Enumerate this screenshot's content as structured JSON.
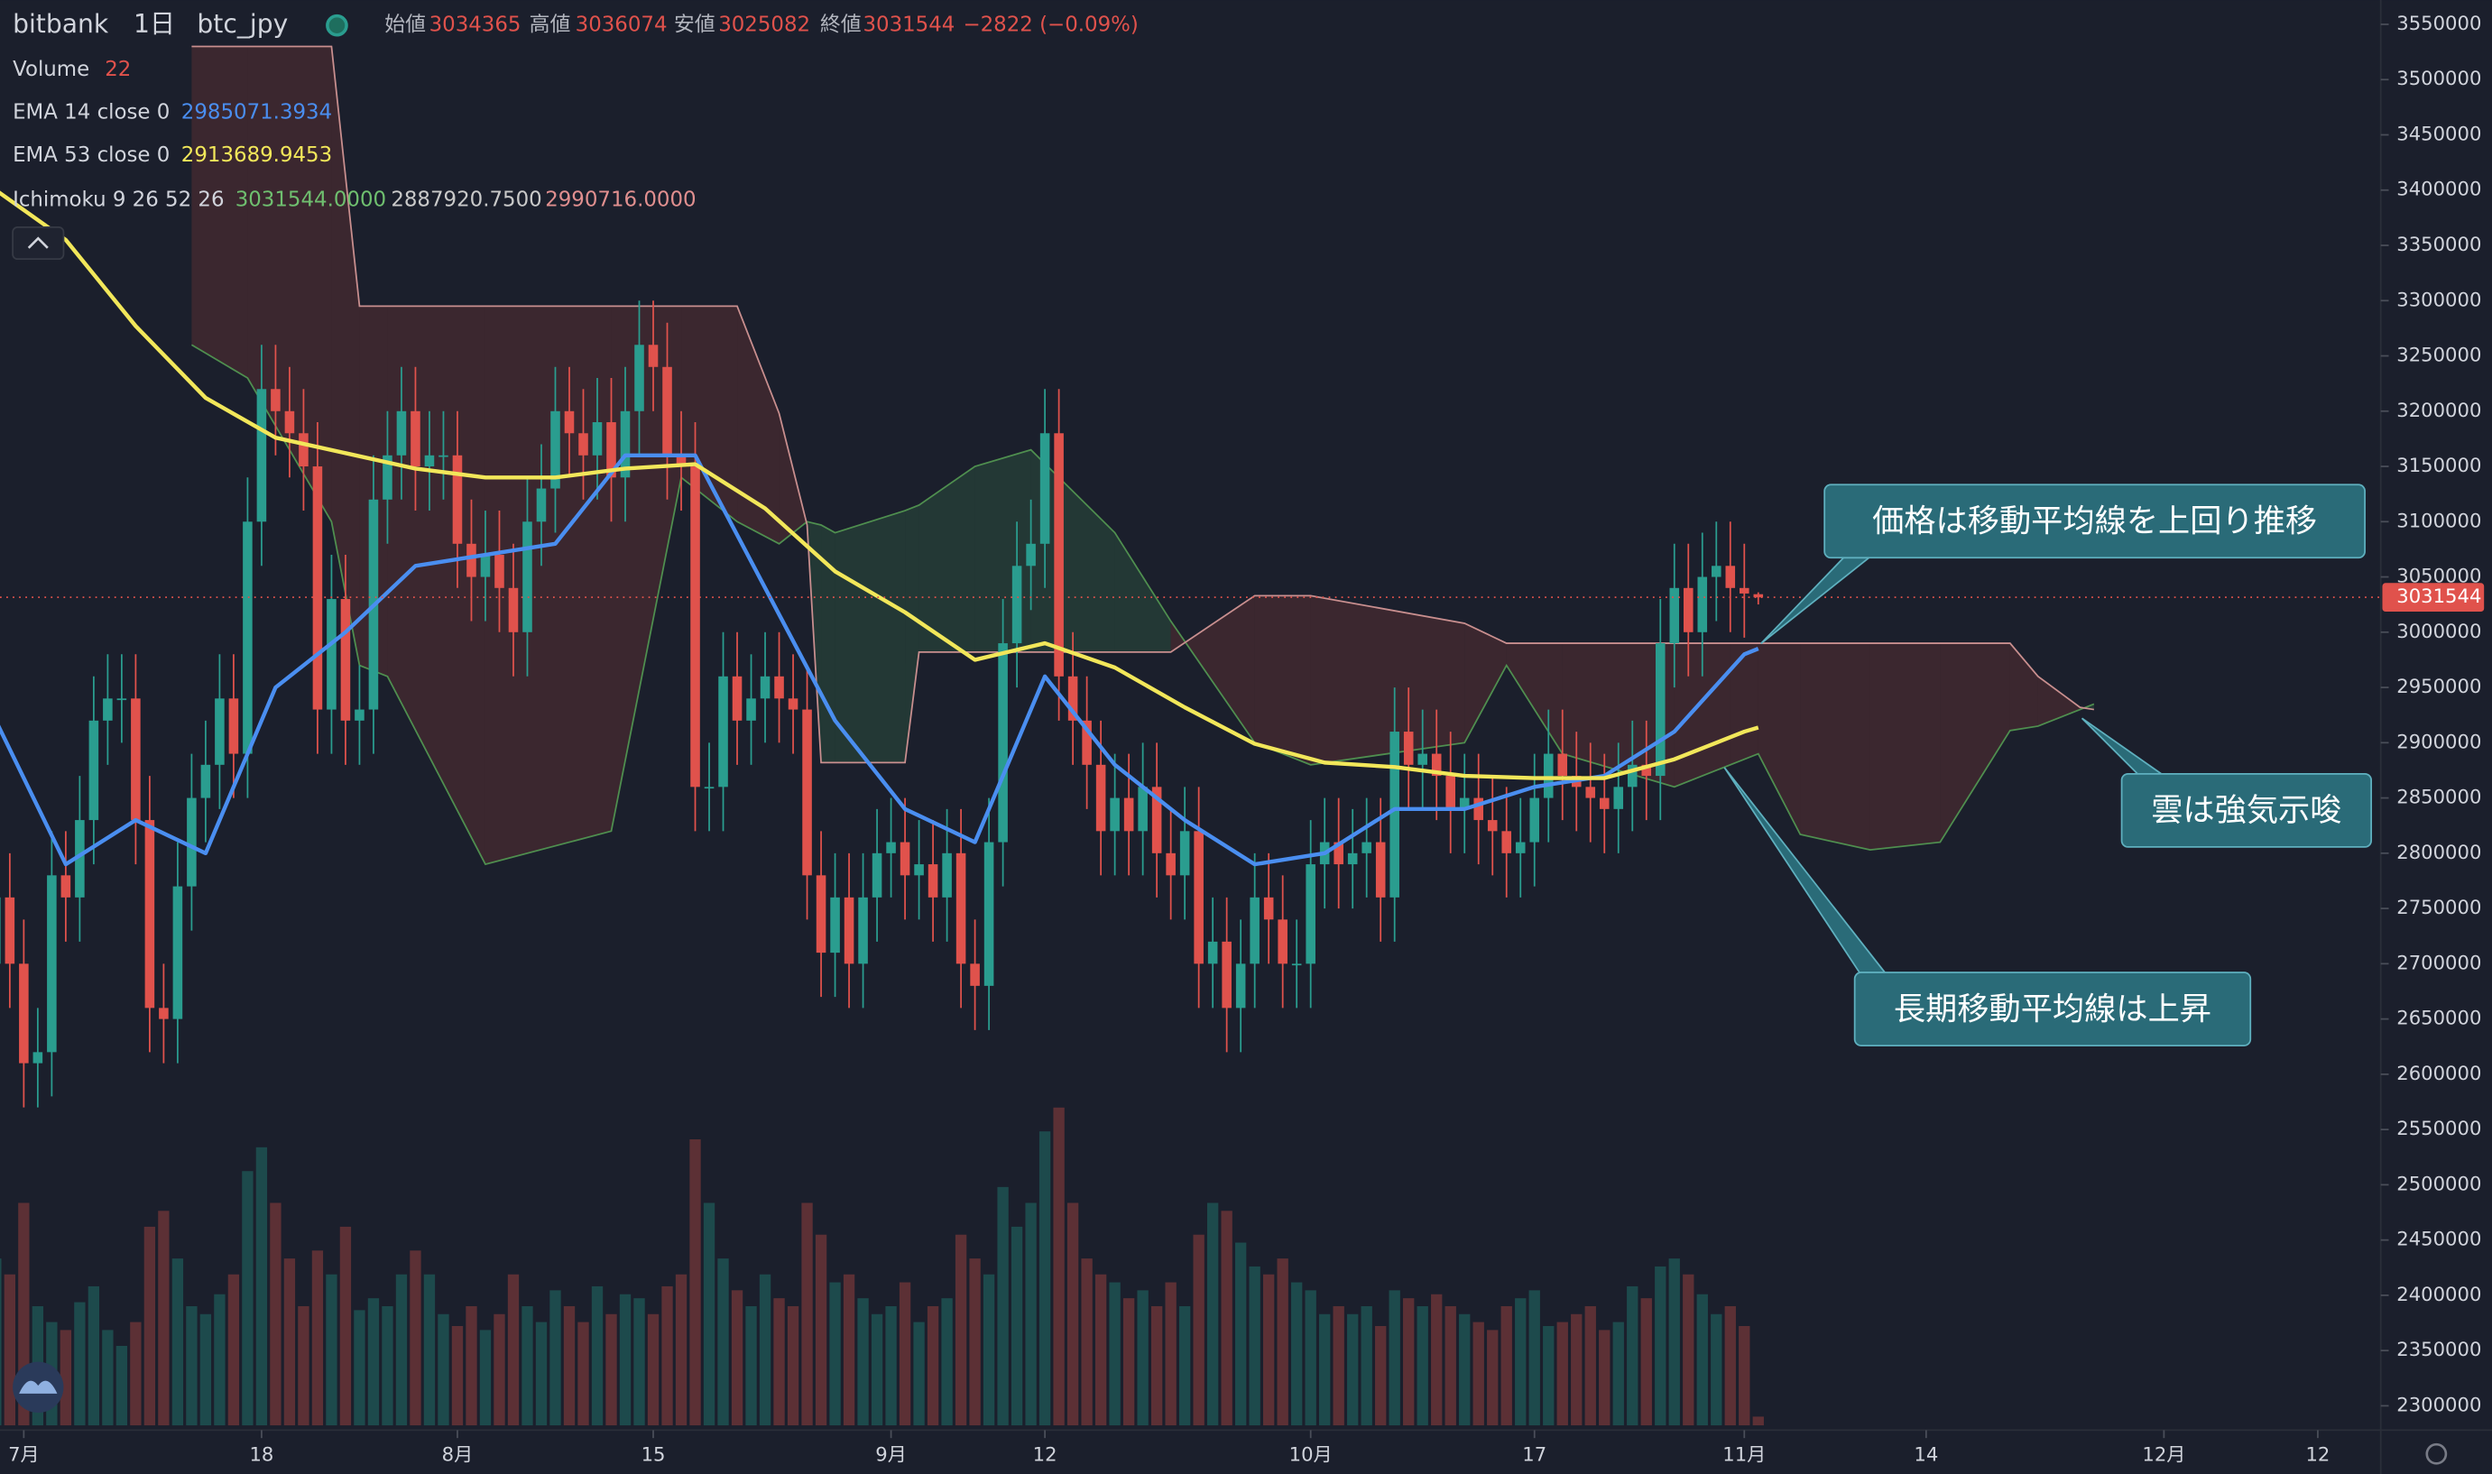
{
  "chart_data": {
    "type": "candlestick",
    "title": "bitbank",
    "interval": "1日",
    "symbol": "btc_jpy",
    "header_labels": {
      "open": "始値",
      "high": "高値",
      "low": "安値",
      "close": "終値"
    },
    "change": "−2822 (−0.09%)",
    "up_color": "#2a9d8f",
    "down_color": "#e0524c",
    "open": [
      2700000,
      2760000,
      2700000,
      2610000,
      2620000,
      2780000,
      2760000,
      2830000,
      2920000,
      2940000,
      2940000,
      2830000,
      2660000,
      2650000,
      2770000,
      2850000,
      2880000,
      2940000,
      2890000,
      3100000,
      3220000,
      3200000,
      3180000,
      3150000,
      2930000,
      3030000,
      2920000,
      2930000,
      3120000,
      3160000,
      3200000,
      3150000,
      3160000,
      3160000,
      3080000,
      3050000,
      3070000,
      3040000,
      3000000,
      3100000,
      3130000,
      3200000,
      3180000,
      3160000,
      3190000,
      3140000,
      3200000,
      3260000,
      3240000,
      3160000,
      3150000,
      2860000,
      2860000,
      2960000,
      2920000,
      2940000,
      2960000,
      2940000,
      2930000,
      2780000,
      2710000,
      2760000,
      2700000,
      2760000,
      2800000,
      2810000,
      2780000,
      2790000,
      2760000,
      2800000,
      2700000,
      2680000,
      2810000,
      2990000,
      3060000,
      3080000,
      3180000,
      2960000,
      2920000,
      2880000,
      2820000,
      2850000,
      2820000,
      2860000,
      2800000,
      2780000,
      2820000,
      2700000,
      2720000,
      2660000,
      2700000,
      2760000,
      2740000,
      2700000,
      2700000,
      2790000,
      2810000,
      2790000,
      2800000,
      2810000,
      2760000,
      2910000,
      2880000,
      2890000,
      2870000,
      2840000,
      2850000,
      2830000,
      2820000,
      2800000,
      2810000,
      2850000,
      2890000,
      2870000,
      2860000,
      2850000,
      2840000,
      2860000,
      2880000,
      2870000,
      2990000,
      3040000,
      3000000,
      3050000,
      3060000,
      3040000,
      3034365
    ],
    "high": [
      2800000,
      2800000,
      2740000,
      2660000,
      2820000,
      2820000,
      2870000,
      2960000,
      2980000,
      2980000,
      2980000,
      2870000,
      2700000,
      2810000,
      2890000,
      2920000,
      2980000,
      2980000,
      3140000,
      3260000,
      3260000,
      3240000,
      3220000,
      3190000,
      3070000,
      3070000,
      2970000,
      3160000,
      3200000,
      3240000,
      3240000,
      3200000,
      3200000,
      3200000,
      3120000,
      3110000,
      3110000,
      3080000,
      3140000,
      3170000,
      3240000,
      3240000,
      3220000,
      3230000,
      3230000,
      3240000,
      3300000,
      3300000,
      3280000,
      3200000,
      3190000,
      2900000,
      3000000,
      3000000,
      2980000,
      3000000,
      3000000,
      2980000,
      2970000,
      2820000,
      2800000,
      2800000,
      2800000,
      2840000,
      2850000,
      2850000,
      2830000,
      2830000,
      2840000,
      2840000,
      2740000,
      2850000,
      3030000,
      3100000,
      3120000,
      3220000,
      3220000,
      3000000,
      2960000,
      2920000,
      2890000,
      2890000,
      2900000,
      2900000,
      2840000,
      2860000,
      2860000,
      2760000,
      2760000,
      2740000,
      2800000,
      2800000,
      2780000,
      2740000,
      2830000,
      2850000,
      2850000,
      2840000,
      2850000,
      2850000,
      2950000,
      2950000,
      2930000,
      2930000,
      2910000,
      2890000,
      2890000,
      2870000,
      2860000,
      2850000,
      2890000,
      2930000,
      2930000,
      2910000,
      2900000,
      2890000,
      2900000,
      2920000,
      2920000,
      3030000,
      3080000,
      3080000,
      3090000,
      3100000,
      3100000,
      3080000,
      3036074
    ],
    "low": [
      2660000,
      2660000,
      2570000,
      2570000,
      2580000,
      2720000,
      2720000,
      2790000,
      2880000,
      2900000,
      2790000,
      2620000,
      2610000,
      2610000,
      2730000,
      2810000,
      2840000,
      2850000,
      2850000,
      3060000,
      3160000,
      3140000,
      3110000,
      2890000,
      2890000,
      2880000,
      2880000,
      2890000,
      3080000,
      3120000,
      3110000,
      3110000,
      3120000,
      3040000,
      3010000,
      3010000,
      3000000,
      2960000,
      2960000,
      3060000,
      3090000,
      3140000,
      3120000,
      3120000,
      3100000,
      3100000,
      3160000,
      3200000,
      3120000,
      3110000,
      2820000,
      2820000,
      2820000,
      2880000,
      2880000,
      2900000,
      2900000,
      2890000,
      2740000,
      2670000,
      2670000,
      2660000,
      2660000,
      2720000,
      2760000,
      2740000,
      2740000,
      2720000,
      2720000,
      2660000,
      2640000,
      2640000,
      2770000,
      2950000,
      3020000,
      3040000,
      2920000,
      2880000,
      2840000,
      2780000,
      2780000,
      2780000,
      2780000,
      2760000,
      2740000,
      2740000,
      2660000,
      2660000,
      2620000,
      2620000,
      2660000,
      2700000,
      2660000,
      2660000,
      2660000,
      2750000,
      2750000,
      2750000,
      2760000,
      2720000,
      2720000,
      2840000,
      2840000,
      2830000,
      2800000,
      2800000,
      2790000,
      2780000,
      2760000,
      2760000,
      2770000,
      2810000,
      2830000,
      2820000,
      2810000,
      2800000,
      2800000,
      2820000,
      2830000,
      2830000,
      2950000,
      2960000,
      2960000,
      3010000,
      3000000,
      2995000,
      3025082
    ],
    "close": [
      2760000,
      2700000,
      2610000,
      2620000,
      2780000,
      2760000,
      2830000,
      2920000,
      2940000,
      2940000,
      2830000,
      2660000,
      2650000,
      2770000,
      2850000,
      2880000,
      2940000,
      2890000,
      3100000,
      3220000,
      3200000,
      3180000,
      3150000,
      2930000,
      3030000,
      2920000,
      2930000,
      3120000,
      3160000,
      3200000,
      3150000,
      3160000,
      3160000,
      3080000,
      3050000,
      3070000,
      3040000,
      3000000,
      3100000,
      3130000,
      3200000,
      3180000,
      3160000,
      3190000,
      3140000,
      3200000,
      3260000,
      3240000,
      3160000,
      3150000,
      2860000,
      2860000,
      2960000,
      2920000,
      2940000,
      2960000,
      2940000,
      2930000,
      2780000,
      2710000,
      2760000,
      2700000,
      2760000,
      2800000,
      2810000,
      2780000,
      2790000,
      2760000,
      2800000,
      2700000,
      2680000,
      2810000,
      2990000,
      3060000,
      3080000,
      3180000,
      2960000,
      2920000,
      2880000,
      2820000,
      2850000,
      2820000,
      2860000,
      2800000,
      2780000,
      2820000,
      2700000,
      2720000,
      2660000,
      2700000,
      2760000,
      2740000,
      2700000,
      2700000,
      2790000,
      2810000,
      2790000,
      2800000,
      2810000,
      2760000,
      2910000,
      2880000,
      2890000,
      2870000,
      2840000,
      2850000,
      2830000,
      2820000,
      2800000,
      2810000,
      2850000,
      2890000,
      2870000,
      2860000,
      2850000,
      2840000,
      2860000,
      2880000,
      2870000,
      2990000,
      3040000,
      3000000,
      3050000,
      3060000,
      3040000,
      3035000,
      3031544
    ],
    "volume": {
      "name": "Volume",
      "up_color": "#1d4a4c",
      "down_color": "#5c3035",
      "ylim": [
        0,
        1000
      ],
      "values": [
        420,
        380,
        560,
        300,
        260,
        240,
        310,
        350,
        240,
        200,
        260,
        500,
        540,
        420,
        300,
        280,
        330,
        380,
        640,
        700,
        560,
        420,
        300,
        440,
        380,
        500,
        290,
        320,
        300,
        380,
        440,
        380,
        280,
        250,
        300,
        240,
        280,
        380,
        300,
        260,
        340,
        300,
        260,
        350,
        280,
        330,
        320,
        280,
        350,
        380,
        720,
        560,
        420,
        340,
        300,
        380,
        320,
        300,
        560,
        480,
        360,
        380,
        320,
        280,
        300,
        360,
        260,
        300,
        320,
        480,
        420,
        380,
        600,
        500,
        560,
        740,
        800,
        560,
        420,
        380,
        360,
        320,
        340,
        300,
        360,
        300,
        480,
        560,
        540,
        460,
        400,
        380,
        420,
        360,
        340,
        280,
        300,
        280,
        300,
        250,
        340,
        320,
        300,
        330,
        300,
        280,
        260,
        240,
        300,
        320,
        340,
        250,
        260,
        280,
        300,
        240,
        260,
        350,
        320,
        400,
        420,
        380,
        330,
        280,
        300,
        250,
        22
      ]
    },
    "ema": [
      {
        "name": "EMA 14 close 0",
        "color": "#4a8ef0",
        "x": [
          0,
          5,
          10,
          15,
          20,
          25,
          30,
          35,
          40,
          45,
          50,
          55,
          60,
          65,
          70,
          75,
          80,
          85,
          90,
          95,
          100,
          105,
          110,
          115,
          120,
          125,
          126
        ],
        "values": [
          2920000,
          2790000,
          2830000,
          2800000,
          2950000,
          3000000,
          3060000,
          3070000,
          3080000,
          3160000,
          3160000,
          3040000,
          2920000,
          2840000,
          2810000,
          2960000,
          2880000,
          2830000,
          2790000,
          2800000,
          2840000,
          2840000,
          2860000,
          2870000,
          2910000,
          2980000,
          2985071.3934
        ]
      },
      {
        "name": "EMA 53 close 0",
        "color": "#f2e75a",
        "x": [
          0,
          5,
          10,
          15,
          20,
          25,
          30,
          35,
          40,
          45,
          50,
          55,
          60,
          65,
          70,
          75,
          80,
          85,
          90,
          95,
          100,
          105,
          110,
          115,
          120,
          125,
          126
        ],
        "values": [
          3400000,
          3355000,
          3277000,
          3212000,
          3176000,
          3162000,
          3148000,
          3140000,
          3140000,
          3148000,
          3152000,
          3112000,
          3055000,
          3018000,
          2975000,
          2990000,
          2968000,
          2932000,
          2899000,
          2882000,
          2878000,
          2870000,
          2868000,
          2868000,
          2885000,
          2910000,
          2913689.9453
        ]
      }
    ],
    "ichimoku": {
      "name": "Ichimoku 9 26 52 26",
      "legend_values": [
        "3031544.0000",
        "2887920.7500",
        "2990716.0000"
      ],
      "legend_colors": [
        "#6fbf6f",
        "#c9c9c9",
        "#e08f8f"
      ],
      "span_a_color": "#4f8f4f",
      "span_b_color": "#c98f8f",
      "bull_fill": "rgba(60,130,80,0.25)",
      "bear_fill": "rgba(120,55,55,0.35)",
      "x": [
        14,
        18,
        24,
        26,
        28,
        35,
        44,
        49,
        53,
        56,
        58,
        59,
        60,
        65,
        66,
        70,
        74,
        80,
        84,
        90,
        94,
        105,
        108,
        112,
        120,
        124,
        126,
        129,
        134,
        139,
        144,
        146,
        149,
        150
      ],
      "span_a": [
        3260000,
        3230000,
        3100000,
        2970000,
        2960000,
        2790000,
        2820000,
        3140000,
        3100000,
        3080000,
        3100000,
        3097000,
        3090000,
        3110000,
        3115000,
        3150000,
        3165000,
        3090000,
        3010000,
        2900000,
        2880000,
        2900000,
        2970000,
        2890000,
        2860000,
        2880000,
        2890000,
        2817000,
        2803000,
        2810000,
        2911000,
        2915000,
        2930000,
        2935000
      ],
      "span_b": [
        3530000,
        3530000,
        3530000,
        3295000,
        3295000,
        3295000,
        3295000,
        3295000,
        3295000,
        3198000,
        3097000,
        2882000,
        2882000,
        2882000,
        2982000,
        2982000,
        2982000,
        2982000,
        2982000,
        3033000,
        3033000,
        3008000,
        2990000,
        2990000,
        2990000,
        2990000,
        2990000,
        2990000,
        2990000,
        2990000,
        2990000,
        2960000,
        2932000,
        2930000
      ]
    },
    "ylim": [
      2278000,
      3572000
    ],
    "yticks": [
      2300000,
      2350000,
      2400000,
      2450000,
      2500000,
      2550000,
      2600000,
      2650000,
      2700000,
      2750000,
      2800000,
      2850000,
      2900000,
      2950000,
      3000000,
      3050000,
      3100000,
      3150000,
      3200000,
      3250000,
      3300000,
      3350000,
      3400000,
      3450000,
      3500000,
      3550000
    ],
    "xlim": [
      0.3,
      170.5
    ],
    "xticks": [
      {
        "value": 2,
        "label": "7月"
      },
      {
        "value": 19,
        "label": "18"
      },
      {
        "value": 33,
        "label": "8月"
      },
      {
        "value": 47,
        "label": "15"
      },
      {
        "value": 64,
        "label": "9月"
      },
      {
        "value": 75,
        "label": "12"
      },
      {
        "value": 94,
        "label": "10月"
      },
      {
        "value": 110,
        "label": "17"
      },
      {
        "value": 125,
        "label": "11月"
      },
      {
        "value": 138,
        "label": "14"
      },
      {
        "value": 155,
        "label": "12月"
      },
      {
        "value": 166,
        "label": "12"
      }
    ],
    "annotations": [
      "価格は移動平均線を上回り推移",
      "雲は強気示唆",
      "長期移動平均線は上昇"
    ]
  }
}
